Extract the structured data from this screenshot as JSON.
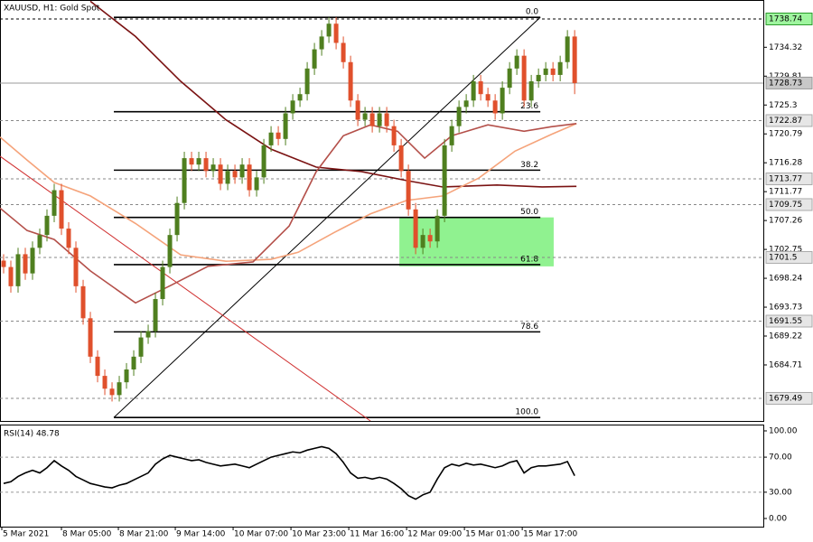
{
  "chart_data": [
    {
      "type": "candlestick",
      "title": "XAUUSD, H1:  Gold Spot",
      "x": [
        0,
        1,
        2,
        3,
        4,
        5,
        6,
        7,
        8,
        9,
        10,
        11,
        12,
        13,
        14,
        15,
        16,
        17,
        18,
        19,
        20,
        21,
        22,
        23,
        24,
        25,
        26,
        27,
        28,
        29,
        30,
        31,
        32,
        33,
        34,
        35,
        36,
        37,
        38,
        39,
        40,
        41,
        42,
        43,
        44,
        45,
        46,
        47,
        48,
        49,
        50,
        51,
        52,
        53,
        54,
        55,
        56,
        57,
        58,
        59,
        60,
        61,
        62,
        63,
        64,
        65,
        66,
        67,
        68,
        69,
        70,
        71,
        72,
        73,
        74,
        75,
        76,
        77,
        78,
        79
      ],
      "open": [
        1701,
        1700,
        1697,
        1702,
        1699,
        1703,
        1705,
        1708,
        1712,
        1706,
        1703,
        1697,
        1692,
        1686,
        1683,
        1681,
        1680,
        1682,
        1684,
        1686,
        1689,
        1690,
        1695,
        1700,
        1705,
        1710,
        1717,
        1716,
        1717,
        1715,
        1716,
        1713,
        1715,
        1714,
        1716,
        1712,
        1714,
        1719,
        1721,
        1720,
        1724,
        1726,
        1727,
        1731,
        1734,
        1736,
        1738,
        1735,
        1732,
        1726,
        1723,
        1724,
        1722,
        1724,
        1722,
        1719,
        1715,
        1709,
        1703,
        1705,
        1704,
        1708,
        1719,
        1722,
        1725,
        1726,
        1729,
        1727,
        1726,
        1724,
        1728,
        1731,
        1733,
        1726,
        1729,
        1730,
        1731,
        1730,
        1732,
        1736
      ],
      "high": [
        1702,
        1701,
        1703,
        1703,
        1704,
        1706,
        1709,
        1713,
        1713,
        1707,
        1704,
        1698,
        1693,
        1687,
        1684,
        1682,
        1683,
        1685,
        1687,
        1690,
        1691,
        1696,
        1701,
        1706,
        1711,
        1718,
        1718,
        1718,
        1718,
        1717,
        1717,
        1716,
        1716,
        1717,
        1717,
        1715,
        1720,
        1722,
        1722,
        1725,
        1727,
        1728,
        1732,
        1735,
        1737,
        1739,
        1739,
        1736,
        1733,
        1727,
        1725,
        1725,
        1725,
        1725,
        1723,
        1720,
        1716,
        1710,
        1706,
        1706,
        1709,
        1720,
        1723,
        1726,
        1727,
        1730,
        1730,
        1728,
        1727,
        1729,
        1732,
        1734,
        1734,
        1730,
        1731,
        1732,
        1732,
        1733,
        1737,
        1737
      ],
      "low": [
        1699,
        1696,
        1696,
        1698,
        1698,
        1702,
        1704,
        1707,
        1705,
        1702,
        1696,
        1691,
        1685,
        1682,
        1680,
        1679,
        1679,
        1681,
        1683,
        1685,
        1688,
        1689,
        1694,
        1699,
        1704,
        1709,
        1715,
        1715,
        1714,
        1714,
        1712,
        1712,
        1713,
        1713,
        1711,
        1711,
        1713,
        1718,
        1719,
        1719,
        1723,
        1725,
        1726,
        1730,
        1733,
        1735,
        1734,
        1731,
        1725,
        1722,
        1722,
        1721,
        1721,
        1721,
        1718,
        1714,
        1708,
        1702,
        1702,
        1703,
        1703,
        1707,
        1718,
        1721,
        1724,
        1725,
        1726,
        1725,
        1723,
        1723,
        1727,
        1730,
        1725,
        1725,
        1728,
        1729,
        1729,
        1729,
        1731,
        1727
      ],
      "close": [
        1700,
        1697,
        1702,
        1699,
        1703,
        1705,
        1708,
        1712,
        1706,
        1703,
        1697,
        1692,
        1686,
        1683,
        1681,
        1680,
        1682,
        1684,
        1686,
        1689,
        1690,
        1695,
        1700,
        1705,
        1710,
        1717,
        1716,
        1717,
        1715,
        1716,
        1713,
        1715,
        1714,
        1716,
        1712,
        1714,
        1719,
        1721,
        1720,
        1724,
        1726,
        1727,
        1731,
        1734,
        1736,
        1738,
        1735,
        1732,
        1726,
        1723,
        1724,
        1722,
        1724,
        1722,
        1719,
        1715,
        1709,
        1703,
        1705,
        1704,
        1708,
        1719,
        1722,
        1725,
        1726,
        1729,
        1727,
        1726,
        1724,
        1728,
        1731,
        1733,
        1726,
        1729,
        1730,
        1731,
        1730,
        1732,
        1736,
        1728.73
      ],
      "up_color": "#4f7f1f",
      "down_color": "#e0502c",
      "xlim": [
        -0.5,
        105.1
      ],
      "ylim": [
        1675.96,
        1741.7
      ],
      "yticks": [
        1734.32,
        1729.81,
        1725.3,
        1720.79,
        1716.28,
        1711.77,
        1707.26,
        1702.75,
        1698.24,
        1693.73,
        1689.22,
        1684.71
      ],
      "xticks": [
        {
          "value": -0.25,
          "label": "5 Mar 2021"
        },
        {
          "value": 8,
          "label": "8 Mar 05:00"
        },
        {
          "value": 15.875,
          "label": "8 Mar 21:00"
        },
        {
          "value": 23.75,
          "label": "9 Mar 14:00"
        },
        {
          "value": 31.75,
          "label": "10 Mar 07:00"
        },
        {
          "value": 39.75,
          "label": "10 Mar 23:00"
        },
        {
          "value": 47.75,
          "label": "11 Mar 16:00"
        },
        {
          "value": 55.75,
          "label": "12 Mar 09:00"
        },
        {
          "value": 63.75,
          "label": "15 Mar 01:00"
        },
        {
          "value": 71.75,
          "label": "15 Mar 17:00"
        }
      ],
      "indicators": [
        {
          "color": "#7a1212",
          "x": [
            12,
            18.25,
            24.5,
            30.75,
            37,
            43.25,
            49.5,
            55.75,
            60.75,
            68.25,
            74.5,
            79.25
          ],
          "values": [
            1741.5,
            1736,
            1729,
            1723,
            1718.4,
            1715.6,
            1714.9,
            1713.5,
            1712.5,
            1712.8,
            1712.5,
            1712.6
          ]
        },
        {
          "color": "#f5a37a",
          "x": [
            -0.5,
            3.25,
            7,
            12,
            18.25,
            24.5,
            30.75,
            37,
            40.75,
            45.75,
            50.75,
            55.75,
            60.75,
            65.75,
            70.75,
            75.75,
            79.25
          ],
          "values": [
            1720.3,
            1716.7,
            1713.2,
            1711.1,
            1706.8,
            1701.9,
            1700.9,
            1701.2,
            1702.3,
            1705.4,
            1708.3,
            1710.4,
            1711.1,
            1713.9,
            1718.1,
            1720.7,
            1722.4
          ]
        },
        {
          "color": "#b4504a",
          "x": [
            -0.5,
            3.25,
            7,
            12,
            18.25,
            23.25,
            28.25,
            34.5,
            39.5,
            43.25,
            47,
            50.75,
            54.5,
            58.25,
            62,
            67,
            72,
            75.75,
            79.25
          ],
          "values": [
            1709.2,
            1705.7,
            1704.3,
            1699.4,
            1694.4,
            1697.2,
            1700.1,
            1700.8,
            1706.4,
            1714.9,
            1720.5,
            1722.2,
            1721.2,
            1717,
            1720.5,
            1722.2,
            1721.2,
            1721.9,
            1722.4
          ]
        }
      ],
      "price_levels": [
        1738.74,
        1722.87,
        1713.77,
        1709.75,
        1701.5,
        1691.55,
        1679.49
      ],
      "current_price": 1728.73,
      "fibonacci": {
        "high": 1739.0,
        "low": 1676.5,
        "x": [
          15.25,
          74.25
        ],
        "levels": [
          {
            "value": 0,
            "label": "0.0"
          },
          {
            "value": 23.6,
            "label": "23.6"
          },
          {
            "value": 38.2,
            "label": "38.2"
          },
          {
            "value": 50,
            "label": "50.0"
          },
          {
            "value": 61.8,
            "label": "61.8"
          },
          {
            "value": 78.6,
            "label": "78.6"
          },
          {
            "value": 100,
            "label": "100.0"
          }
        ]
      },
      "trendline": {
        "color": "#d03030",
        "x": [
          -0.5,
          50.75
        ],
        "values": [
          1717.3,
          1675.96
        ]
      },
      "zone": {
        "color": "#90f290",
        "x": [
          54.75,
          76.1
        ],
        "values": [
          1700.1,
          1707.75
        ]
      }
    },
    {
      "type": "line",
      "title": "RSI(14) 48.78",
      "color": "#000000",
      "x": [
        0,
        1,
        2,
        3,
        4,
        5,
        6,
        7,
        8,
        9,
        10,
        11,
        12,
        13,
        14,
        15,
        16,
        17,
        18,
        19,
        20,
        21,
        22,
        23,
        24,
        25,
        26,
        27,
        28,
        29,
        30,
        31,
        32,
        33,
        34,
        35,
        36,
        37,
        38,
        39,
        40,
        41,
        42,
        43,
        44,
        45,
        46,
        47,
        48,
        49,
        50,
        51,
        52,
        53,
        54,
        55,
        56,
        57,
        58,
        59,
        60,
        61,
        62,
        63,
        64,
        65,
        66,
        67,
        68,
        69,
        70,
        71,
        72,
        73,
        74,
        75,
        76,
        77,
        78,
        79
      ],
      "values": [
        40,
        42,
        48,
        52,
        55,
        52,
        58,
        66,
        60,
        55,
        48,
        44,
        40,
        38,
        36,
        35,
        38,
        40,
        44,
        48,
        52,
        62,
        68,
        72,
        70,
        68,
        66,
        67,
        64,
        62,
        60,
        61,
        62,
        60,
        58,
        62,
        66,
        70,
        72,
        74,
        76,
        75,
        78,
        80,
        82,
        80,
        74,
        64,
        52,
        46,
        47,
        45,
        47,
        45,
        40,
        34,
        26,
        22,
        27,
        30,
        45,
        58,
        62,
        60,
        63,
        61,
        62,
        60,
        58,
        60,
        64,
        66,
        52,
        58,
        60,
        60,
        61,
        62,
        65,
        48.78
      ],
      "xlim": [
        -0.5,
        105.1
      ],
      "ylim": [
        -9.3,
        107.2
      ],
      "yticks": [
        {
          "value": 100,
          "label": "100.00"
        },
        {
          "value": 70,
          "label": "70.00"
        },
        {
          "value": 30,
          "label": "30.00"
        },
        {
          "value": 0,
          "label": "0.00"
        }
      ],
      "levels": [
        70,
        30
      ]
    }
  ]
}
